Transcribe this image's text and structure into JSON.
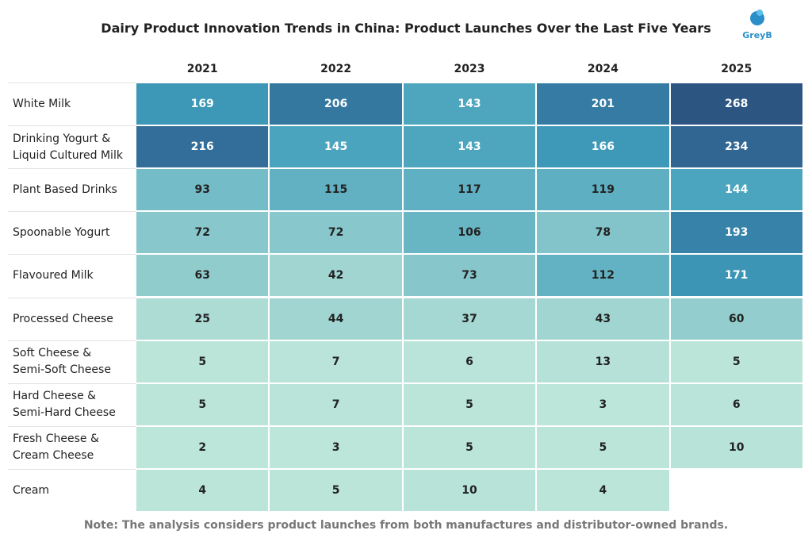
{
  "chart_data": {
    "type": "heatmap",
    "title": "Dairy Product Innovation Trends in China: Product Launches Over the Last Five Years",
    "logo": "GreyB",
    "columns": [
      "2021",
      "2022",
      "2023",
      "2024",
      "2025"
    ],
    "rows": [
      "White Milk",
      "Drinking Yogurt &\nLiquid Cultured Milk",
      "Plant Based Drinks",
      "Spoonable Yogurt",
      "Flavoured Milk",
      "Processed Cheese",
      "Soft Cheese &\nSemi-Soft Cheese",
      "Hard Cheese &\nSemi-Hard Cheese",
      "Fresh Cheese &\nCream Cheese",
      "Cream"
    ],
    "values": [
      [
        169,
        206,
        143,
        201,
        268
      ],
      [
        216,
        145,
        143,
        166,
        234
      ],
      [
        93,
        115,
        117,
        119,
        144
      ],
      [
        72,
        72,
        106,
        78,
        193
      ],
      [
        63,
        42,
        73,
        112,
        171
      ],
      [
        25,
        44,
        37,
        43,
        60
      ],
      [
        5,
        7,
        6,
        13,
        5
      ],
      [
        5,
        7,
        5,
        3,
        6
      ],
      [
        2,
        3,
        5,
        5,
        10
      ],
      [
        4,
        5,
        10,
        4,
        null
      ]
    ],
    "colors": [
      "#bde6da",
      "#98d0cf",
      "#66b4c4",
      "#3f9dbb",
      "#326f9a",
      "#2d5582"
    ],
    "note": "Note: The analysis considers product launches from both manufactures and distributor-owned brands."
  }
}
